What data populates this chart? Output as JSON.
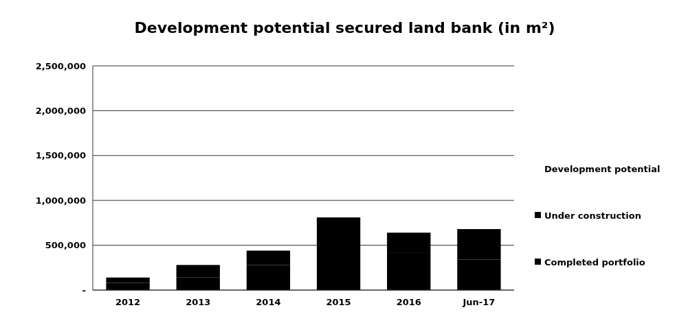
{
  "chart_data": {
    "type": "bar",
    "title": "Development potential secured land bank (in m²)",
    "categories": [
      "2012",
      "2013",
      "2014",
      "2015",
      "2016",
      "Jun-17"
    ],
    "stacked": true,
    "series": [
      {
        "name": "Completed portfolio",
        "color": "#000000",
        "values": [
          80000,
          140000,
          280000,
          810000,
          420000,
          340000
        ]
      },
      {
        "name": "Under construction",
        "color": "#000000",
        "values": [
          60000,
          140000,
          160000,
          null,
          220000,
          340000
        ]
      },
      {
        "name": "Development potential",
        "values": [
          null,
          null,
          null,
          null,
          null,
          null
        ]
      }
    ],
    "ylim": [
      0,
      2500000
    ],
    "yticks": [
      {
        "value": 0,
        "label": "-"
      },
      {
        "value": 500000,
        "label": "500,000"
      },
      {
        "value": 1000000,
        "label": "1,000,000"
      },
      {
        "value": 1500000,
        "label": "1,500,000"
      },
      {
        "value": 2000000,
        "label": "2,000,000"
      },
      {
        "value": 2500000,
        "label": "2,500,000"
      }
    ],
    "grid": "y",
    "legend": "right"
  }
}
